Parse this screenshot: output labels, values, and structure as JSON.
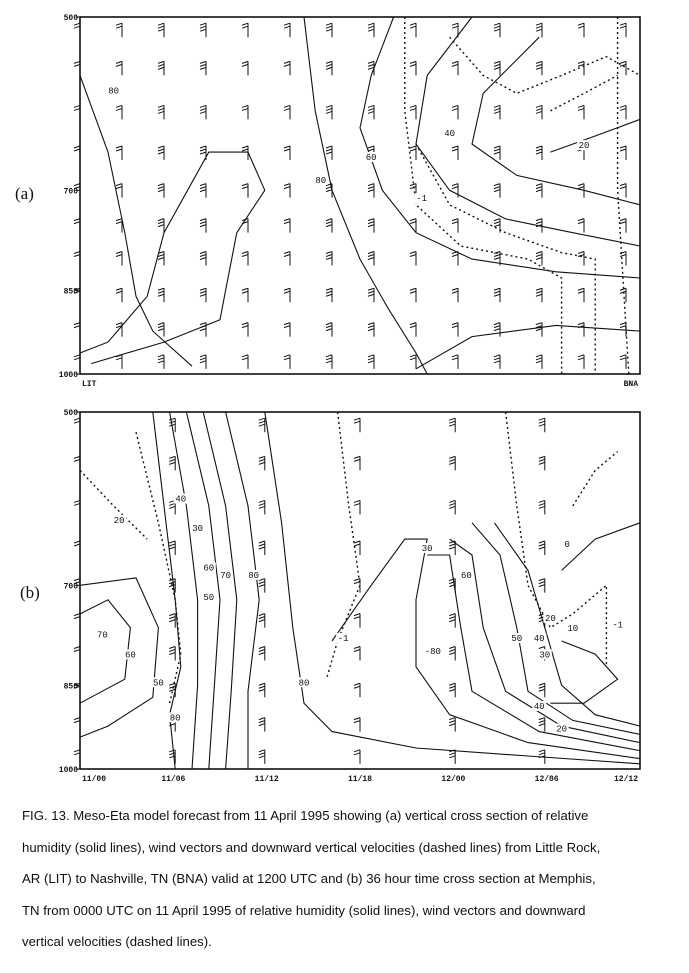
{
  "figure": {
    "caption_lines": [
      "FIG. 13.  Meso-Eta model forecast from 11 April 1995 showing (a) vertical cross section of relative",
      "humidity (solid lines), wind vectors and downward vertical velocities (dashed lines) from Little Rock,",
      "AR (LIT) to Nashville, TN (BNA) valid at 1200 UTC and (b) 36 hour time cross section at Memphis,",
      "TN from 0000 UTC on 11 April 1995 of relative humidity (solid lines), wind vectors and downward",
      "vertical velocities (dashed lines)."
    ]
  },
  "chart_data": [
    {
      "type": "contour",
      "panel_label": "(a)",
      "y_ticks": [
        "500",
        "700",
        "850",
        "1000"
      ],
      "x_labels": [
        "LIT",
        "BNA"
      ],
      "contour_labels": [
        {
          "text": "80",
          "x": 0.06,
          "p": 580
        },
        {
          "text": "80",
          "x": 0.43,
          "p": 690
        },
        {
          "text": "60",
          "x": 0.52,
          "p": 660
        },
        {
          "text": "40",
          "x": 0.66,
          "p": 630
        },
        {
          "text": "20",
          "x": 0.9,
          "p": 645
        },
        {
          "text": "-1",
          "x": 0.61,
          "p": 715
        }
      ]
    },
    {
      "type": "contour",
      "panel_label": "(b)",
      "y_ticks": [
        "500",
        "700",
        "850",
        "1000"
      ],
      "x_labels": [
        "11/00",
        "11/06",
        "11/12",
        "11/18",
        "12/00",
        "12/06",
        "12/12"
      ],
      "contour_labels": [
        {
          "text": "20",
          "x": 0.07,
          "p": 620
        },
        {
          "text": "30",
          "x": 0.21,
          "p": 630
        },
        {
          "text": "40",
          "x": 0.18,
          "p": 595
        },
        {
          "text": "50",
          "x": 0.23,
          "p": 720
        },
        {
          "text": "60",
          "x": 0.23,
          "p": 680
        },
        {
          "text": "70",
          "x": 0.26,
          "p": 690
        },
        {
          "text": "80",
          "x": 0.31,
          "p": 690
        },
        {
          "text": "70",
          "x": 0.04,
          "p": 775
        },
        {
          "text": "60",
          "x": 0.09,
          "p": 805
        },
        {
          "text": "50",
          "x": 0.14,
          "p": 850
        },
        {
          "text": "80",
          "x": 0.17,
          "p": 910
        },
        {
          "text": "80",
          "x": 0.4,
          "p": 850
        },
        {
          "text": "-1",
          "x": 0.47,
          "p": 780
        },
        {
          "text": "30",
          "x": 0.62,
          "p": 655
        },
        {
          "text": "60",
          "x": 0.69,
          "p": 690
        },
        {
          "text": "-80",
          "x": 0.63,
          "p": 800
        },
        {
          "text": "50",
          "x": 0.78,
          "p": 780
        },
        {
          "text": "40",
          "x": 0.82,
          "p": 780
        },
        {
          "text": "20",
          "x": 0.84,
          "p": 750
        },
        {
          "text": "10",
          "x": 0.88,
          "p": 765
        },
        {
          "text": "0",
          "x": 0.87,
          "p": 650
        },
        {
          "text": "-1",
          "x": 0.96,
          "p": 760
        },
        {
          "text": "30",
          "x": 0.83,
          "p": 805
        },
        {
          "text": "40",
          "x": 0.82,
          "p": 890
        },
        {
          "text": "20",
          "x": 0.86,
          "p": 930
        }
      ]
    }
  ]
}
